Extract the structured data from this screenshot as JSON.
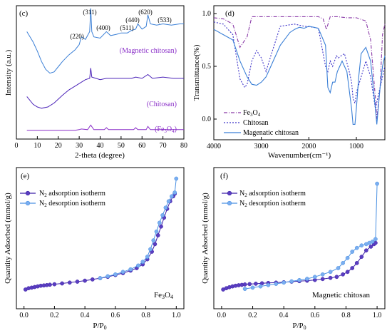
{
  "panels": [
    {
      "id": "c",
      "label": "(c)",
      "xlabel": "2-theta (degree)",
      "ylabel": "Intensity (a.u.)",
      "xticks": [
        "0",
        "10",
        "20",
        "30",
        "40",
        "50",
        "60",
        "70",
        "80"
      ],
      "peak_labels": [
        "(220)",
        "(311)",
        "(400)",
        "(511)",
        "(440)",
        "(620)",
        "(533)"
      ],
      "curve_labels": {
        "magnetic": "(Magnetic chitosan)",
        "chitosan": "(Chitosan)",
        "fe3o4_prefix": "(Fe",
        "fe3o4_sub1": "3",
        "fe3o4_mid": "O",
        "fe3o4_sub2": "4",
        "fe3o4_suffix": ")"
      },
      "colors": {
        "magnetic": "#3a7fd6",
        "chitosan": "#4b23b8",
        "fe3o4": "#8a2fc8"
      }
    },
    {
      "id": "d",
      "label": "(d)",
      "xlabel": "Wavenumber(cm⁻¹)",
      "ylabel": "Transmittance(%)",
      "xticks": [
        "4000",
        "3000",
        "2000",
        "1000"
      ],
      "yticks": [
        "0.0",
        "0.5",
        "1.0"
      ],
      "legend": {
        "fe_prefix": "Fe",
        "fe_sub1": "3",
        "fe_mid": "O",
        "fe_sub2": "4",
        "chitosan": "Chitosan",
        "magnetic": "Magenatic chitosan"
      },
      "colors": {
        "fe3o4": "#8a3aa8",
        "chitosan": "#3a30c8",
        "magnetic": "#3a7fd6"
      }
    },
    {
      "id": "e",
      "label": "(e)",
      "xlabel_prefix": "P/P",
      "xlabel_sub": "0",
      "ylabel": "Quantity Adsorbed (mmol/g)",
      "xticks": [
        "0.0",
        "0.2",
        "0.4",
        "0.6",
        "0.8",
        "1.0"
      ],
      "sample_prefix": "Fe",
      "sample_sub1": "3",
      "sample_mid": "O",
      "sample_sub2": "4",
      "legend": {
        "n": "N",
        "two": "2",
        "adsorption": " adsorption isotherm",
        "desorption": " desorption isotherm"
      },
      "colors": {
        "adsorption": "#3b1fa8",
        "desorption": "#4a90e2"
      }
    },
    {
      "id": "f",
      "label": "(f)",
      "xlabel_prefix": "P/P",
      "xlabel_sub": "0",
      "ylabel": "Quantity Adsorbed (mmol/g)",
      "xticks": [
        "0.0",
        "0.2",
        "0.4",
        "0.6",
        "0.8",
        "1.0"
      ],
      "sample": "Magnetic chitosan",
      "legend": {
        "n": "N",
        "two": "2",
        "adsorption": " adsorption isotherm",
        "desorption": " desorption isotherm"
      },
      "colors": {
        "adsorption": "#3b1fa8",
        "desorption": "#4a90e2"
      }
    }
  ],
  "chart_data": [
    {
      "type": "line",
      "panel": "c",
      "xlabel": "2-theta (degree)",
      "ylabel": "Intensity (a.u.)",
      "xlim": [
        0,
        80
      ],
      "series": [
        {
          "name": "(Magnetic chitosan)",
          "x": [
            5,
            8,
            10,
            12,
            14,
            16,
            18,
            20,
            22,
            25,
            28,
            30,
            31,
            33,
            35,
            35.5,
            36,
            37,
            40,
            43,
            45,
            48,
            50,
            53,
            55,
            57,
            58,
            60,
            62,
            62.8,
            64,
            67,
            70,
            74,
            78,
            80
          ],
          "y": [
            0.8,
            0.72,
            0.65,
            0.57,
            0.51,
            0.48,
            0.49,
            0.53,
            0.57,
            0.62,
            0.66,
            0.7,
            0.76,
            0.74,
            0.8,
            0.98,
            0.8,
            0.76,
            0.75,
            0.8,
            0.77,
            0.78,
            0.79,
            0.79,
            0.81,
            0.82,
            0.86,
            0.82,
            0.84,
            0.93,
            0.86,
            0.85,
            0.86,
            0.85,
            0.86,
            0.86
          ]
        },
        {
          "name": "(Chitosan)",
          "x": [
            5,
            8,
            10,
            12,
            15,
            18,
            20,
            22,
            25,
            28,
            30,
            33,
            35,
            35.5,
            36,
            38,
            40,
            43,
            45,
            50,
            55,
            57,
            60,
            62.8,
            65,
            70,
            75,
            80
          ],
          "y": [
            0.3,
            0.24,
            0.22,
            0.21,
            0.22,
            0.25,
            0.28,
            0.31,
            0.35,
            0.38,
            0.4,
            0.43,
            0.44,
            0.52,
            0.45,
            0.44,
            0.43,
            0.44,
            0.44,
            0.44,
            0.44,
            0.45,
            0.44,
            0.47,
            0.44,
            0.45,
            0.44,
            0.44
          ]
        },
        {
          "name": "(Fe3O4)",
          "x": [
            5,
            10,
            20,
            28,
            30,
            31,
            34,
            35.5,
            37,
            42,
            43,
            44,
            50,
            56,
            57,
            58,
            62,
            62.8,
            64,
            70,
            75,
            80
          ],
          "y": [
            0.04,
            0.04,
            0.04,
            0.04,
            0.045,
            0.05,
            0.045,
            0.08,
            0.045,
            0.045,
            0.06,
            0.045,
            0.045,
            0.045,
            0.06,
            0.045,
            0.045,
            0.07,
            0.045,
            0.045,
            0.045,
            0.045
          ]
        }
      ]
    },
    {
      "type": "line",
      "panel": "d",
      "xlabel": "Wavenumber(cm⁻¹)",
      "ylabel": "Transmittance(%)",
      "xlim": [
        4000,
        400
      ],
      "ylim": [
        -0.25,
        1.05
      ],
      "series": [
        {
          "name": "Fe3O4",
          "x": [
            4000,
            3800,
            3600,
            3450,
            3300,
            3200,
            3100,
            3000,
            2600,
            2000,
            1800,
            1700,
            1630,
            1550,
            1400,
            1200,
            1000,
            800,
            700,
            600,
            570,
            500,
            450,
            400
          ],
          "y": [
            0.96,
            0.95,
            0.9,
            0.68,
            0.78,
            0.97,
            0.97,
            0.97,
            0.97,
            0.97,
            0.97,
            0.95,
            0.85,
            0.97,
            0.97,
            0.96,
            0.96,
            0.93,
            0.75,
            0.2,
            0.0,
            0.3,
            0.8,
            0.9
          ]
        },
        {
          "name": "Chitosan",
          "x": [
            4000,
            3800,
            3600,
            3450,
            3350,
            3300,
            3200,
            3100,
            3000,
            2900,
            2800,
            2600,
            2300,
            2100,
            1900,
            1800,
            1650,
            1600,
            1550,
            1500,
            1420,
            1380,
            1320,
            1250,
            1150,
            1100,
            1070,
            1030,
            1000,
            900,
            800,
            700,
            600,
            500,
            400
          ],
          "y": [
            0.92,
            0.9,
            0.8,
            0.38,
            0.3,
            0.33,
            0.55,
            0.65,
            0.58,
            0.45,
            0.6,
            0.88,
            0.9,
            0.88,
            0.87,
            0.86,
            0.5,
            0.45,
            0.55,
            0.5,
            0.6,
            0.58,
            0.6,
            0.62,
            0.45,
            0.35,
            0.2,
            0.15,
            0.25,
            0.4,
            0.55,
            0.4,
            0.1,
            0.3,
            0.5
          ]
        },
        {
          "name": "Magenatic chitosan",
          "x": [
            4000,
            3800,
            3600,
            3450,
            3300,
            3200,
            3100,
            3000,
            2900,
            2800,
            2600,
            2400,
            2300,
            2200,
            2100,
            2000,
            1900,
            1800,
            1650,
            1600,
            1550,
            1500,
            1450,
            1400,
            1300,
            1200,
            1100,
            1070,
            1030,
            1000,
            950,
            900,
            800,
            700,
            600,
            570,
            500,
            450,
            400
          ],
          "y": [
            0.85,
            0.8,
            0.75,
            0.55,
            0.4,
            0.33,
            0.32,
            0.35,
            0.4,
            0.5,
            0.7,
            0.82,
            0.85,
            0.87,
            0.86,
            0.88,
            0.87,
            0.86,
            0.7,
            0.3,
            0.25,
            0.35,
            0.35,
            0.45,
            0.55,
            0.45,
            0.1,
            -0.05,
            -0.05,
            0.1,
            0.4,
            0.62,
            0.68,
            0.55,
            0.1,
            -0.05,
            0.3,
            0.5,
            0.6
          ]
        }
      ]
    },
    {
      "type": "scatter",
      "panel": "e",
      "xlabel": "P/P0",
      "ylabel": "Quantity Adsorbed (mmol/g)",
      "xlim": [
        -0.05,
        1.05
      ],
      "series": [
        {
          "name": "N2 adsorption isotherm",
          "x": [
            0.01,
            0.03,
            0.05,
            0.07,
            0.09,
            0.11,
            0.13,
            0.15,
            0.17,
            0.2,
            0.25,
            0.3,
            0.35,
            0.4,
            0.45,
            0.5,
            0.55,
            0.6,
            0.65,
            0.7,
            0.74,
            0.78,
            0.81,
            0.84,
            0.86,
            0.88,
            0.9,
            0.92,
            0.94,
            0.96,
            0.98,
            0.99
          ],
          "y": [
            0.0,
            0.01,
            0.015,
            0.02,
            0.025,
            0.03,
            0.032,
            0.035,
            0.038,
            0.042,
            0.048,
            0.055,
            0.062,
            0.07,
            0.08,
            0.09,
            0.1,
            0.115,
            0.13,
            0.15,
            0.17,
            0.2,
            0.24,
            0.3,
            0.36,
            0.43,
            0.5,
            0.57,
            0.64,
            0.7,
            0.74,
            0.76
          ]
        },
        {
          "name": "N2 desorption isotherm",
          "x": [
            1.0,
            0.99,
            0.97,
            0.95,
            0.93,
            0.91,
            0.89,
            0.87,
            0.85,
            0.83,
            0.81,
            0.78,
            0.75,
            0.7,
            0.65,
            0.6,
            0.55,
            0.5
          ],
          "y": [
            0.88,
            0.77,
            0.74,
            0.7,
            0.65,
            0.59,
            0.53,
            0.46,
            0.39,
            0.32,
            0.26,
            0.22,
            0.19,
            0.16,
            0.14,
            0.12,
            0.105,
            0.09
          ]
        }
      ]
    },
    {
      "type": "scatter",
      "panel": "f",
      "xlabel": "P/P0",
      "ylabel": "Quantity Adsorbed (mmol/g)",
      "xlim": [
        -0.05,
        1.05
      ],
      "series": [
        {
          "name": "N2 adsorption isotherm",
          "x": [
            0.01,
            0.03,
            0.05,
            0.07,
            0.09,
            0.11,
            0.13,
            0.15,
            0.18,
            0.22,
            0.26,
            0.3,
            0.35,
            0.4,
            0.45,
            0.5,
            0.55,
            0.6,
            0.65,
            0.7,
            0.74,
            0.78,
            0.81,
            0.84,
            0.87,
            0.9,
            0.93,
            0.96,
            0.98,
            0.99
          ],
          "y": [
            0.0,
            0.01,
            0.018,
            0.025,
            0.03,
            0.034,
            0.037,
            0.04,
            0.043,
            0.046,
            0.049,
            0.052,
            0.055,
            0.058,
            0.062,
            0.066,
            0.07,
            0.076,
            0.083,
            0.092,
            0.1,
            0.12,
            0.14,
            0.17,
            0.21,
            0.26,
            0.31,
            0.34,
            0.36,
            0.37
          ]
        },
        {
          "name": "N2 desorption isotherm",
          "x": [
            1.0,
            0.99,
            0.97,
            0.95,
            0.93,
            0.9,
            0.87,
            0.84,
            0.81,
            0.78,
            0.75,
            0.7,
            0.65,
            0.6,
            0.55,
            0.5,
            0.45,
            0.4,
            0.35,
            0.3,
            0.25,
            0.2,
            0.15
          ],
          "y": [
            0.84,
            0.4,
            0.38,
            0.37,
            0.36,
            0.35,
            0.33,
            0.3,
            0.25,
            0.21,
            0.17,
            0.14,
            0.12,
            0.1,
            0.085,
            0.075,
            0.065,
            0.055,
            0.045,
            0.035,
            0.025,
            0.015,
            0.005
          ]
        }
      ]
    }
  ]
}
